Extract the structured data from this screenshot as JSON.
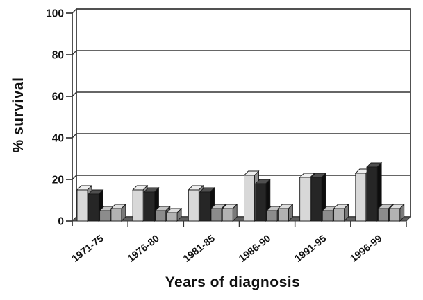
{
  "chart_data": {
    "type": "bar",
    "style": "3d-grouped-bars",
    "title": "",
    "xlabel": "Years of diagnosis",
    "ylabel": "% survival",
    "categories": [
      "1971-75",
      "1976-80",
      "1981-85",
      "1986-90",
      "1991-95",
      "1996-99"
    ],
    "series": [
      {
        "name": "light-gray-bars",
        "values": [
          15,
          15,
          15,
          22,
          21,
          23
        ],
        "color": {
          "front": "#d8d8d8",
          "top": "#eeeeee",
          "side": "#8f8f8f"
        }
      },
      {
        "name": "black-bars",
        "values": [
          13,
          14,
          14,
          18,
          21,
          26
        ],
        "color": {
          "front": "#262626",
          "top": "#4f4f4f",
          "side": "#0d0d0d"
        }
      },
      {
        "name": "dark-gray-bars",
        "values": [
          5,
          5,
          6,
          5,
          5,
          6
        ],
        "color": {
          "front": "#8c8c8c",
          "top": "#c4c4c4",
          "side": "#595959"
        }
      },
      {
        "name": "medium-gray-bars",
        "values": [
          6,
          4,
          6,
          6,
          6,
          6
        ],
        "color": {
          "front": "#b2b2b2",
          "top": "#dedede",
          "side": "#7a7a7a"
        }
      }
    ],
    "y_ticks": [
      0,
      20,
      40,
      60,
      80,
      100
    ],
    "ylim": [
      0,
      100
    ],
    "grid": true,
    "legend": "none",
    "axis_color": "#333333",
    "floor_color": "#5f5f5f",
    "background": "#ffffff"
  }
}
